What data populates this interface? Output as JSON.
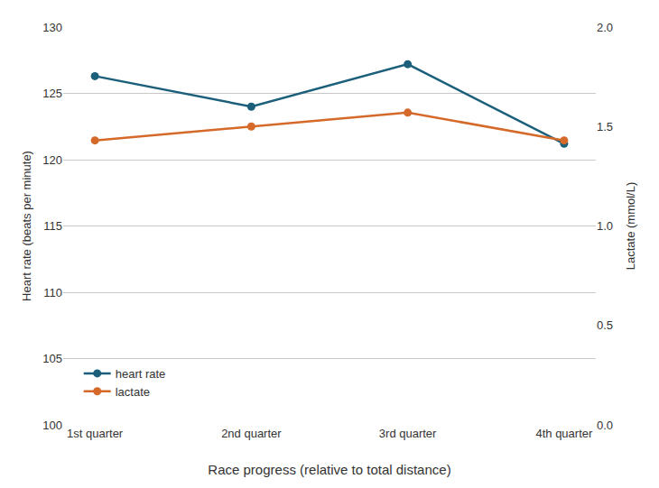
{
  "chart_data": {
    "type": "line",
    "categories": [
      "1st quarter",
      "2nd quarter",
      "3rd quarter",
      "4th quarter"
    ],
    "series": [
      {
        "name": "heart rate",
        "color": "#1b5f7a",
        "marker": "circle",
        "values": [
          126.3,
          124.0,
          127.2,
          121.2
        ]
      },
      {
        "name": "lactate",
        "color": "#d4692a",
        "marker": "circle",
        "axis": "y2",
        "values": [
          1.43,
          1.5,
          1.57,
          1.43
        ]
      }
    ],
    "xlabel": "Race progress (relative to total distance)",
    "ylabel": "Heart rate (beats per minute)",
    "y2label": "Lactate (mmol/L)",
    "ylim": [
      100,
      130
    ],
    "yticks": [
      100,
      105,
      110,
      115,
      120,
      125,
      130
    ],
    "y2lim": [
      0,
      2
    ],
    "y2ticks": [
      {
        "value": 0,
        "label": "0.0"
      },
      0.5,
      {
        "value": 1,
        "label": "1.0"
      },
      1.5,
      {
        "value": 2,
        "label": "2.0"
      }
    ],
    "grid": true,
    "legend": "lower left"
  }
}
